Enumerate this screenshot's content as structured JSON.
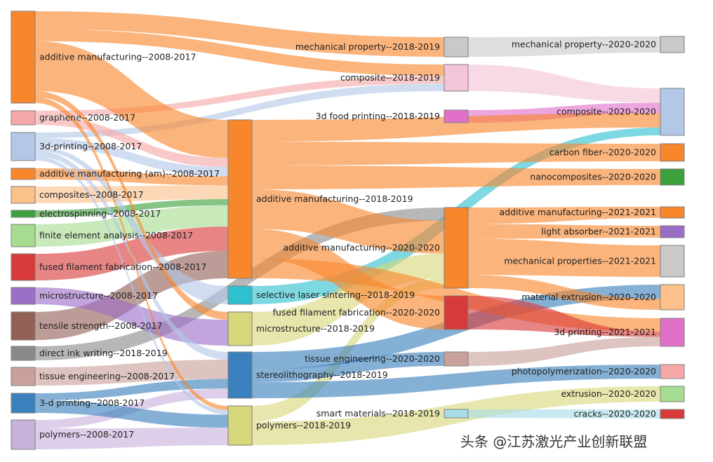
{
  "watermark": "头条 @江苏激光产业创新联盟",
  "colors": {
    "orange": "#f8862b",
    "light_orange": "#fcc08a",
    "pink": "#f6a8a8",
    "light_pink": "#f4c4d8",
    "light_blue": "#b3c8e8",
    "green": "#3ca03c",
    "light_green": "#a6dc8f",
    "red": "#d83a3a",
    "purple": "#9b6ec6",
    "brown": "#936055",
    "gray": "#8a8a8a",
    "light_gray": "#c9c9c9",
    "rose_brown": "#c9a09a",
    "steel_blue": "#3a80bc",
    "lavender": "#c8b2db",
    "cyan": "#2fc0cf",
    "olive": "#d6d67a",
    "magenta": "#e070c8",
    "pale_cyan": "#a8dce6"
  },
  "nodes": [
    {
      "id": "am0817",
      "label": "additive manufacturing--2008-2017",
      "color": "orange"
    },
    {
      "id": "gr0817",
      "label": "graphene--2008-2017",
      "color": "pink"
    },
    {
      "id": "3dp0817",
      "label": "3d-printing--2008-2017",
      "color": "light_blue"
    },
    {
      "id": "amam0817",
      "label": "additive manufacturing (am)--2008-2017",
      "color": "orange"
    },
    {
      "id": "comp0817",
      "label": "composites--2008-2017",
      "color": "light_orange"
    },
    {
      "id": "es0817",
      "label": "electrospinning--2008-2017",
      "color": "green"
    },
    {
      "id": "fea0817",
      "label": "finite element analysis--2008-2017",
      "color": "light_green"
    },
    {
      "id": "fff0817",
      "label": "fused filament fabrication--2008-2017",
      "color": "red"
    },
    {
      "id": "ms0817",
      "label": "microstructure--2008-2017",
      "color": "purple"
    },
    {
      "id": "ts0817",
      "label": "tensile strength--2008-2017",
      "color": "brown"
    },
    {
      "id": "diw1819a",
      "label": "direct ink writing--2018-2019",
      "color": "gray"
    },
    {
      "id": "te0817",
      "label": "tissue engineering--2008-2017",
      "color": "rose_brown"
    },
    {
      "id": "3dp2_0817",
      "label": "3-d printing--2008-2017",
      "color": "steel_blue"
    },
    {
      "id": "poly0817",
      "label": "polymers--2008-2017",
      "color": "lavender"
    },
    {
      "id": "mp1819",
      "label": "mechanical property--2018-2019",
      "color": "light_gray"
    },
    {
      "id": "comp1819",
      "label": "composite--2018-2019",
      "color": "light_pink"
    },
    {
      "id": "3df1819",
      "label": "3d food printing--2018-2019",
      "color": "magenta"
    },
    {
      "id": "am1819",
      "label": "additive manufacturing--2018-2019",
      "color": "orange"
    },
    {
      "id": "sls1819",
      "label": "selective laser sintering--2018-2019",
      "color": "cyan"
    },
    {
      "id": "ms1819",
      "label": "microstructure--2018-2019",
      "color": "olive"
    },
    {
      "id": "sla1819",
      "label": "stereolithography--2018-2019",
      "color": "steel_blue"
    },
    {
      "id": "poly1819",
      "label": "polymers--2018-2019",
      "color": "olive"
    },
    {
      "id": "smart1819",
      "label": "smart materials--2018-2019",
      "color": "pale_cyan"
    },
    {
      "id": "am2020",
      "label": "additive manufacturing--2020-2020",
      "color": "orange"
    },
    {
      "id": "fff2020",
      "label": "fused filament fabrication--2020-2020",
      "color": "red"
    },
    {
      "id": "te2020",
      "label": "tissue engineering--2020-2020",
      "color": "rose_brown"
    },
    {
      "id": "mp2020",
      "label": "mechanical property--2020-2020",
      "color": "light_gray"
    },
    {
      "id": "comp2020",
      "label": "composite--2020-2020",
      "color": "light_blue"
    },
    {
      "id": "cf2020",
      "label": "carbon fiber--2020-2020",
      "color": "orange"
    },
    {
      "id": "nano2020",
      "label": "nanocomposites--2020-2020",
      "color": "green"
    },
    {
      "id": "am2021",
      "label": "additive manufacturing--2021-2021",
      "color": "orange"
    },
    {
      "id": "la2021",
      "label": "light absorber--2021-2021",
      "color": "purple"
    },
    {
      "id": "mps2021",
      "label": "mechanical properties--2021-2021",
      "color": "light_gray"
    },
    {
      "id": "me2020",
      "label": "material extrusion--2020-2020",
      "color": "light_orange"
    },
    {
      "id": "3dp2021",
      "label": "3d printing--2021-2021",
      "color": "magenta"
    },
    {
      "id": "photo2020",
      "label": "photopolymerization--2020-2020",
      "color": "pink"
    },
    {
      "id": "ext2020",
      "label": "extrusion--2020-2020",
      "color": "light_green"
    },
    {
      "id": "cracks2020",
      "label": "cracks--2020-2020",
      "color": "red"
    }
  ],
  "links": [
    {
      "source": "am0817",
      "target": "mp1819",
      "value": 18
    },
    {
      "source": "am0817",
      "target": "comp1819",
      "value": 12
    },
    {
      "source": "am0817",
      "target": "am1819",
      "value": 50
    },
    {
      "source": "am0817",
      "target": "ms1819",
      "value": 6
    },
    {
      "source": "am0817",
      "target": "poly1819",
      "value": 6
    },
    {
      "source": "gr0817",
      "target": "comp1819",
      "value": 8
    },
    {
      "source": "gr0817",
      "target": "am1819",
      "value": 12
    },
    {
      "source": "3dp0817",
      "target": "comp1819",
      "value": 8
    },
    {
      "source": "3dp0817",
      "target": "am1819",
      "value": 12
    },
    {
      "source": "3dp0817",
      "target": "sls1819",
      "value": 6
    },
    {
      "source": "3dp0817",
      "target": "sla1819",
      "value": 8
    },
    {
      "source": "3dp0817",
      "target": "poly1819",
      "value": 6
    },
    {
      "source": "amam0817",
      "target": "am1819",
      "value": 12
    },
    {
      "source": "comp0817",
      "target": "am1819",
      "value": 18
    },
    {
      "source": "es0817",
      "target": "am1819",
      "value": 8
    },
    {
      "source": "fea0817",
      "target": "am1819",
      "value": 28
    },
    {
      "source": "fff0817",
      "target": "am1819",
      "value": 32
    },
    {
      "source": "ms0817",
      "target": "ms1819",
      "value": 20
    },
    {
      "source": "ts0817",
      "target": "am1819",
      "value": 36
    },
    {
      "source": "diw1819a",
      "target": "am2020",
      "value": 16
    },
    {
      "source": "te0817",
      "target": "sla1819",
      "value": 20
    },
    {
      "source": "3dp2_0817",
      "target": "sla1819",
      "value": 10
    },
    {
      "source": "3dp2_0817",
      "target": "poly1819",
      "value": 18
    },
    {
      "source": "poly0817",
      "target": "poly1819",
      "value": 24
    },
    {
      "source": "poly0817",
      "target": "sla1819",
      "value": 10
    },
    {
      "source": "mp1819",
      "target": "mp2020",
      "value": 22
    },
    {
      "source": "comp1819",
      "target": "comp2020",
      "value": 22
    },
    {
      "source": "3df1819",
      "target": "comp2020",
      "value": 16
    },
    {
      "source": "am1819",
      "target": "comp2020",
      "value": 22
    },
    {
      "source": "am1819",
      "target": "cf2020",
      "value": 24
    },
    {
      "source": "am1819",
      "target": "nano2020",
      "value": 24
    },
    {
      "source": "am1819",
      "target": "am2020",
      "value": 40
    },
    {
      "source": "am1819",
      "target": "fff2020",
      "value": 30
    },
    {
      "source": "am1819",
      "target": "3dp2021",
      "value": 20
    },
    {
      "source": "sls1819",
      "target": "comp2020",
      "value": 12
    },
    {
      "source": "ms1819",
      "target": "am2020",
      "value": 30
    },
    {
      "source": "sla1819",
      "target": "te2020",
      "value": 14
    },
    {
      "source": "sla1819",
      "target": "me2020",
      "value": 20
    },
    {
      "source": "sla1819",
      "target": "photo2020",
      "value": 18
    },
    {
      "source": "poly1819",
      "target": "am2020",
      "value": 12
    },
    {
      "source": "poly1819",
      "target": "ext2020",
      "value": 18
    },
    {
      "source": "smart1819",
      "target": "cracks2020",
      "value": 10
    },
    {
      "source": "am2020",
      "target": "am2021",
      "value": 20
    },
    {
      "source": "am2020",
      "target": "la2021",
      "value": 18
    },
    {
      "source": "am2020",
      "target": "mps2021",
      "value": 44
    },
    {
      "source": "am2020",
      "target": "me2020",
      "value": 16
    },
    {
      "source": "fff2020",
      "target": "3dp2021",
      "value": 8
    },
    {
      "source": "te2020",
      "target": "3dp2021",
      "value": 14
    }
  ]
}
